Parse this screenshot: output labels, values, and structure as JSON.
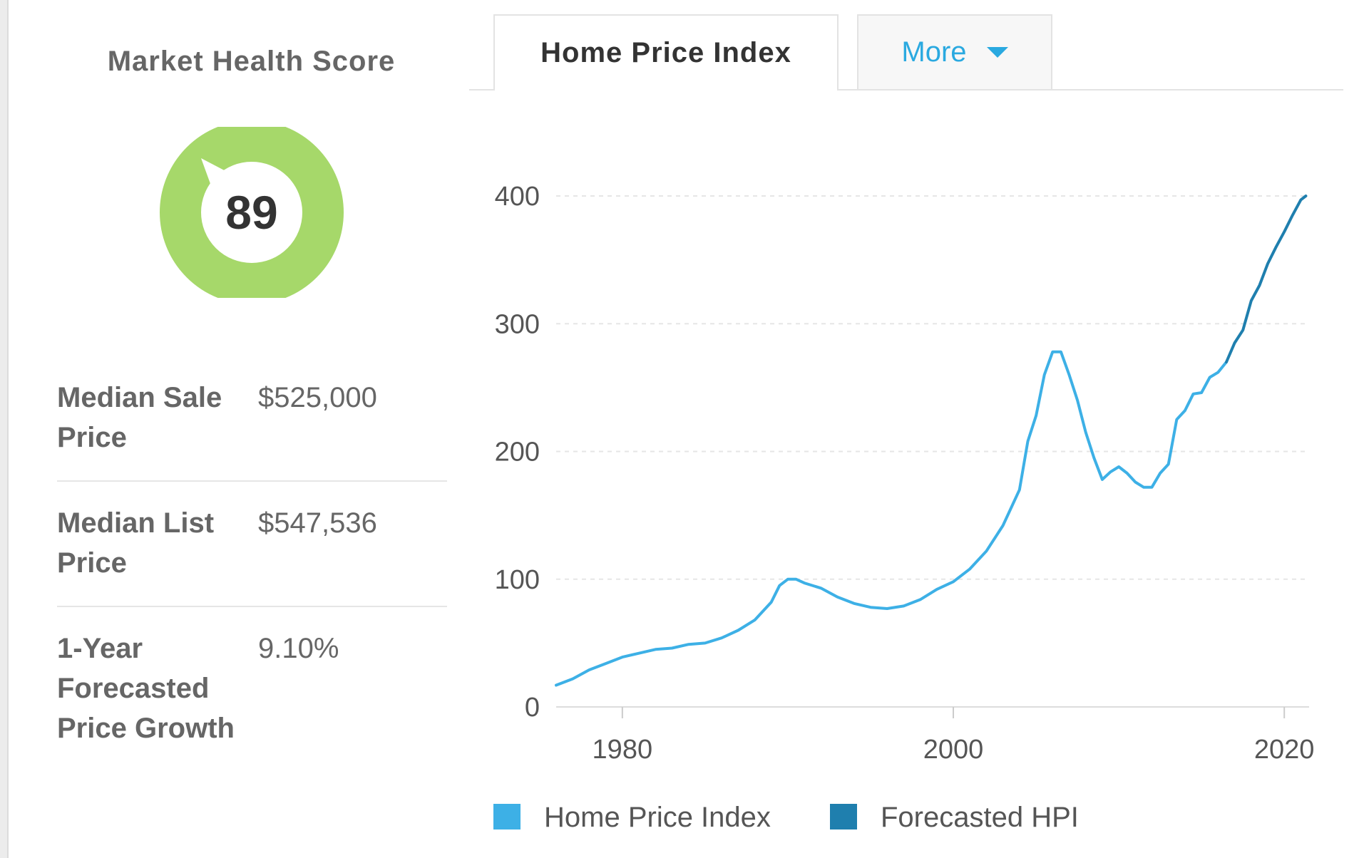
{
  "market_health": {
    "title": "Market Health Score",
    "score": "89",
    "score_fraction": 0.89,
    "gauge_color": "#a6d86a"
  },
  "stats": [
    {
      "label": "Median Sale Price",
      "value": "$525,000"
    },
    {
      "label": "Median List Price",
      "value": "$547,536"
    },
    {
      "label": "1-Year Forecasted Price Growth",
      "value": "9.10%"
    }
  ],
  "tabs": {
    "active_label": "Home Price Index",
    "more_label": "More"
  },
  "colors": {
    "hpi_line": "#3db0e6",
    "forecast_line": "#1f7fae",
    "accent": "#2aa9e0"
  },
  "chart_data": {
    "type": "line",
    "title": "",
    "xlabel": "",
    "ylabel": "",
    "xlim": [
      1976,
      2021.5
    ],
    "ylim": [
      0,
      400
    ],
    "x_ticks": [
      "1980",
      "2000",
      "2020"
    ],
    "y_ticks": [
      "0",
      "100",
      "200",
      "300",
      "400"
    ],
    "grid": true,
    "legend_position": "bottom",
    "series": [
      {
        "name": "Home Price Index",
        "color": "#3db0e6",
        "x": [
          1976,
          1977,
          1978,
          1979,
          1980,
          1981,
          1982,
          1983,
          1984,
          1985,
          1986,
          1987,
          1988,
          1989,
          1989.5,
          1990,
          1990.5,
          1991,
          1992,
          1993,
          1994,
          1995,
          1996,
          1997,
          1998,
          1999,
          2000,
          2001,
          2002,
          2003,
          2004,
          2004.5,
          2005,
          2005.5,
          2006,
          2006.5,
          2007,
          2007.5,
          2008,
          2008.5,
          2009,
          2009.5,
          2010,
          2010.5,
          2011,
          2011.5,
          2012,
          2012.5,
          2013,
          2013.5,
          2014,
          2014.5,
          2015,
          2015.5,
          2016,
          2016.5
        ],
        "y": [
          17,
          22,
          29,
          34,
          39,
          42,
          45,
          46,
          49,
          50,
          54,
          60,
          68,
          82,
          95,
          100,
          100,
          97,
          93,
          86,
          81,
          78,
          77,
          79,
          84,
          92,
          98,
          108,
          122,
          142,
          170,
          208,
          228,
          260,
          278,
          278,
          260,
          240,
          215,
          195,
          178,
          184,
          188,
          183,
          176,
          172,
          172,
          183,
          190,
          225,
          232,
          245,
          246,
          258,
          262,
          270
        ]
      },
      {
        "name": "Forecasted HPI",
        "color": "#1f7fae",
        "x": [
          2016.5,
          2017,
          2017.5,
          2018,
          2018.5,
          2019,
          2019.5,
          2020,
          2020.5,
          2021,
          2021.3
        ],
        "y": [
          270,
          285,
          295,
          318,
          330,
          347,
          360,
          372,
          385,
          397,
          400
        ]
      }
    ]
  }
}
